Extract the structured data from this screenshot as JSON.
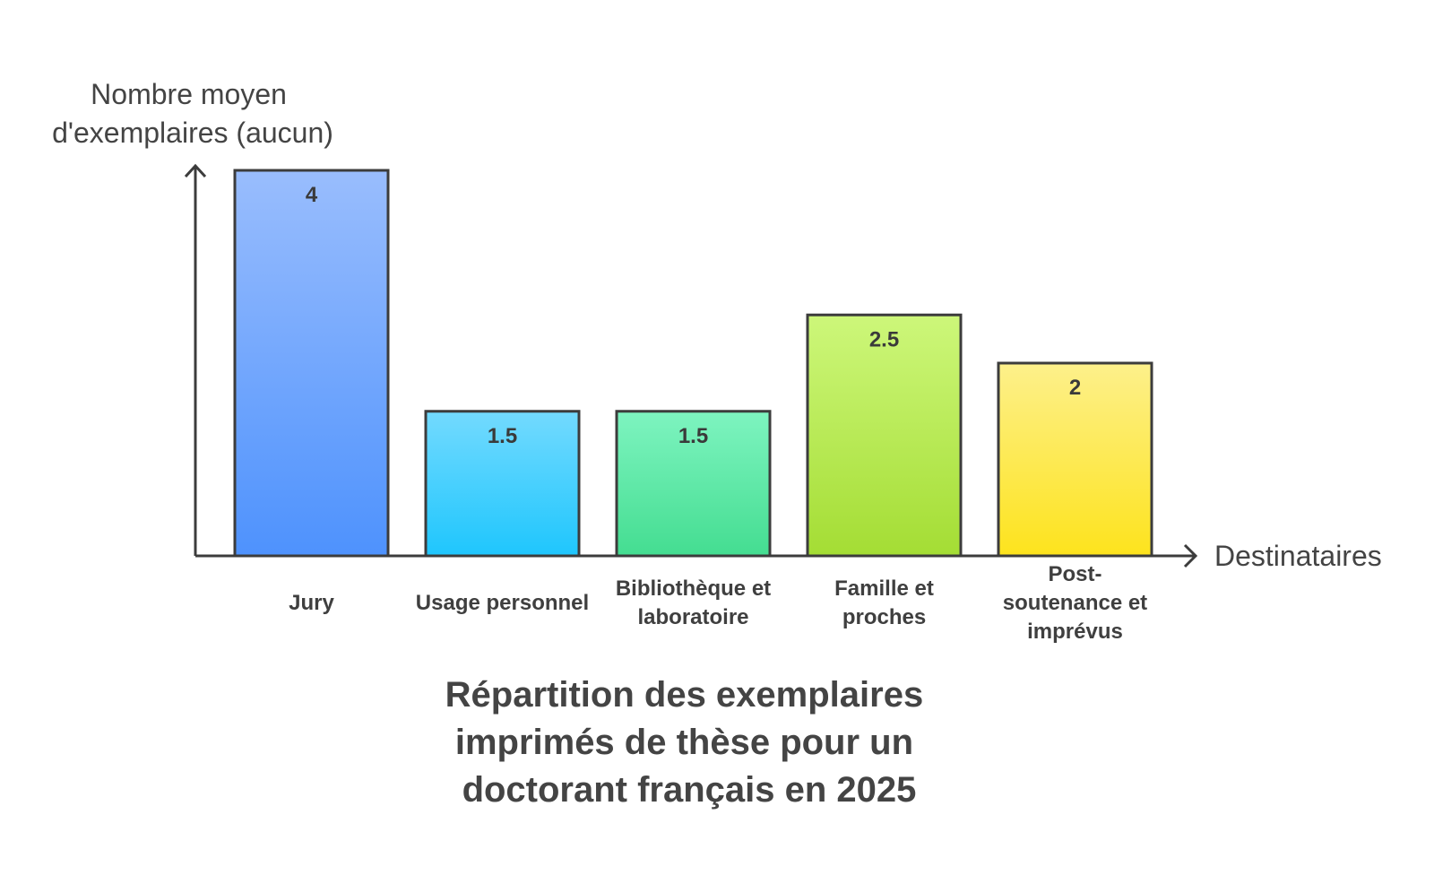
{
  "chart_data": {
    "type": "bar",
    "title_lines": [
      "Répartition des exemplaires",
      "imprimés de thèse pour un",
      "doctorant français en 2025"
    ],
    "ylabel_lines": [
      "Nombre moyen",
      "d'exemplaires (aucun)"
    ],
    "xlabel": "Destinataires",
    "categories": [
      [
        "Jury"
      ],
      [
        "Usage personnel"
      ],
      [
        "Bibliothèque et",
        "laboratoire"
      ],
      [
        "Famille et",
        "proches"
      ],
      [
        "Post-",
        "soutenance et",
        "imprévus"
      ]
    ],
    "values": [
      4,
      1.5,
      1.5,
      2.5,
      2
    ],
    "value_labels": [
      "4",
      "1.5",
      "1.5",
      "2.5",
      "2"
    ],
    "ylim": [
      0,
      4
    ],
    "grid": false,
    "legend": "none",
    "colors": [
      [
        "#99bdfd",
        "#4e92fd"
      ],
      [
        "#73dafe",
        "#1fc6fd"
      ],
      [
        "#7ef4c0",
        "#44dd91"
      ],
      [
        "#cdf77a",
        "#a4dd34"
      ],
      [
        "#fdf08b",
        "#fde31d"
      ]
    ],
    "text_color": "#444444"
  }
}
